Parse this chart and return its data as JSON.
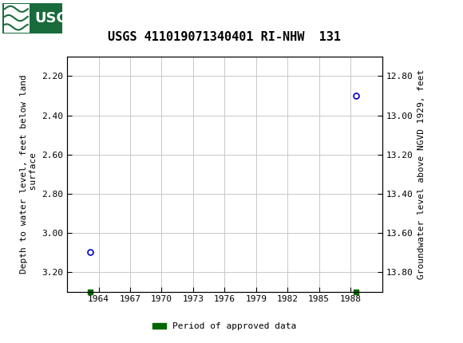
{
  "title": "USGS 411019071340401 RI-NHW  131",
  "left_ylabel": "Depth to water level, feet below land\n surface",
  "right_ylabel": "Groundwater level above NGVD 1929, feet",
  "data_points": [
    {
      "year": 1963.2,
      "depth": 3.1
    },
    {
      "year": 1988.5,
      "depth": 2.3
    }
  ],
  "green_squares": [
    {
      "year": 1963.2
    },
    {
      "year": 1988.5
    }
  ],
  "xlim": [
    1961.0,
    1991.0
  ],
  "xticks": [
    1964,
    1967,
    1970,
    1973,
    1976,
    1979,
    1982,
    1985,
    1988
  ],
  "ylim_left": [
    2.1,
    3.3
  ],
  "ylim_right_top": 13.9,
  "ylim_right_bottom": 12.7,
  "yticks_left": [
    2.2,
    2.4,
    2.6,
    2.8,
    3.0,
    3.2
  ],
  "yticks_right": [
    13.8,
    13.6,
    13.4,
    13.2,
    13.0,
    12.8
  ],
  "grid_color": "#c8c8c8",
  "point_color": "#0000cc",
  "green_color": "#006600",
  "background_color": "#ffffff",
  "header_bg_color": "#1a6b3c",
  "title_fontsize": 11,
  "tick_fontsize": 8,
  "label_fontsize": 8,
  "legend_label": "Period of approved data"
}
